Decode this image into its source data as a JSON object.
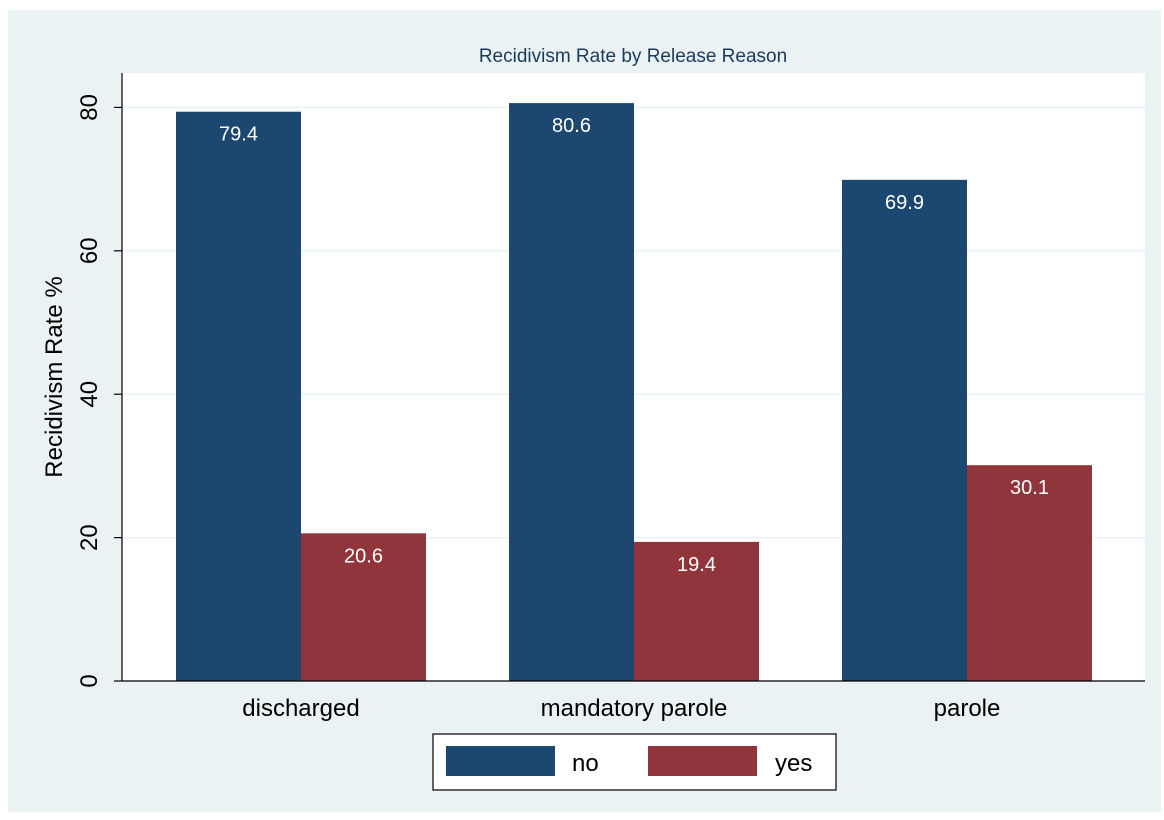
{
  "chart_data": {
    "type": "bar",
    "title": "Recidivism Rate by Release Reason",
    "ylabel": "Recidivism Rate %",
    "xlabel": "",
    "categories": [
      "discharged",
      "mandatory parole",
      "parole"
    ],
    "series": [
      {
        "name": "no",
        "values": [
          79.4,
          80.6,
          69.9
        ],
        "labels": [
          "79.4",
          "80.6",
          "69.9"
        ],
        "color": "#1b4771"
      },
      {
        "name": "yes",
        "values": [
          20.6,
          19.4,
          30.1
        ],
        "labels": [
          "20.6",
          "19.4",
          "30.1"
        ],
        "color": "#90353c"
      }
    ],
    "ylim": [
      0,
      84.8
    ],
    "yticks": [
      0,
      20,
      40,
      60,
      80
    ],
    "ytick_labels": [
      "0",
      "20",
      "40",
      "60",
      "80"
    ],
    "grid": true,
    "legend_position": "bottom",
    "colors": {
      "outer_background": "#eaf2f3",
      "plot_background": "#ffffff",
      "title_color": "#1b3b5c",
      "grid_color": "#eaf2f3"
    }
  }
}
